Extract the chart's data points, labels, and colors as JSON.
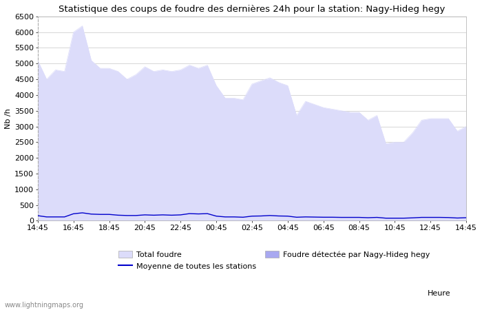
{
  "title": "Statistique des coups de foudre des dernières 24h pour la station: Nagy-Hideg hegy",
  "xlabel": "Heure",
  "ylabel": "Nb /h",
  "ylim": [
    0,
    6500
  ],
  "yticks": [
    0,
    500,
    1000,
    1500,
    2000,
    2500,
    3000,
    3500,
    4000,
    4500,
    5000,
    5500,
    6000,
    6500
  ],
  "x_labels": [
    "14:45",
    "16:45",
    "18:45",
    "20:45",
    "22:45",
    "00:45",
    "02:45",
    "04:45",
    "06:45",
    "08:45",
    "10:45",
    "12:45",
    "14:45"
  ],
  "watermark": "www.lightningmaps.org",
  "total_foudre_color": "#dcdcfa",
  "detected_color": "#a8a8f0",
  "mean_line_color": "#0000cc",
  "background_color": "#ffffff",
  "grid_color": "#d0d0d0",
  "spine_color": "#aaaaaa",
  "total_foudre": [
    5100,
    4500,
    4800,
    4750,
    6000,
    6200,
    5100,
    4850,
    4850,
    4750,
    4500,
    4650,
    4900,
    4750,
    4800,
    4750,
    4800,
    4950,
    4850,
    4950,
    4300,
    3900,
    3900,
    3850,
    4350,
    4450,
    4550,
    4400,
    4300,
    3350,
    3800,
    3700,
    3600,
    3550,
    3500,
    3450,
    3450,
    3200,
    3350,
    2450,
    2500,
    2500,
    2800,
    3200,
    3250,
    3250,
    3250,
    2850,
    3000
  ],
  "mean_line": [
    160,
    120,
    120,
    120,
    220,
    250,
    210,
    200,
    200,
    175,
    165,
    165,
    185,
    175,
    185,
    175,
    185,
    225,
    215,
    225,
    145,
    120,
    120,
    110,
    145,
    150,
    165,
    150,
    145,
    110,
    120,
    115,
    110,
    110,
    105,
    105,
    105,
    95,
    105,
    80,
    80,
    80,
    90,
    105,
    105,
    105,
    100,
    85,
    95
  ],
  "title_fontsize": 9.5,
  "axis_label_fontsize": 8,
  "tick_fontsize": 8,
  "legend_fontsize": 8
}
